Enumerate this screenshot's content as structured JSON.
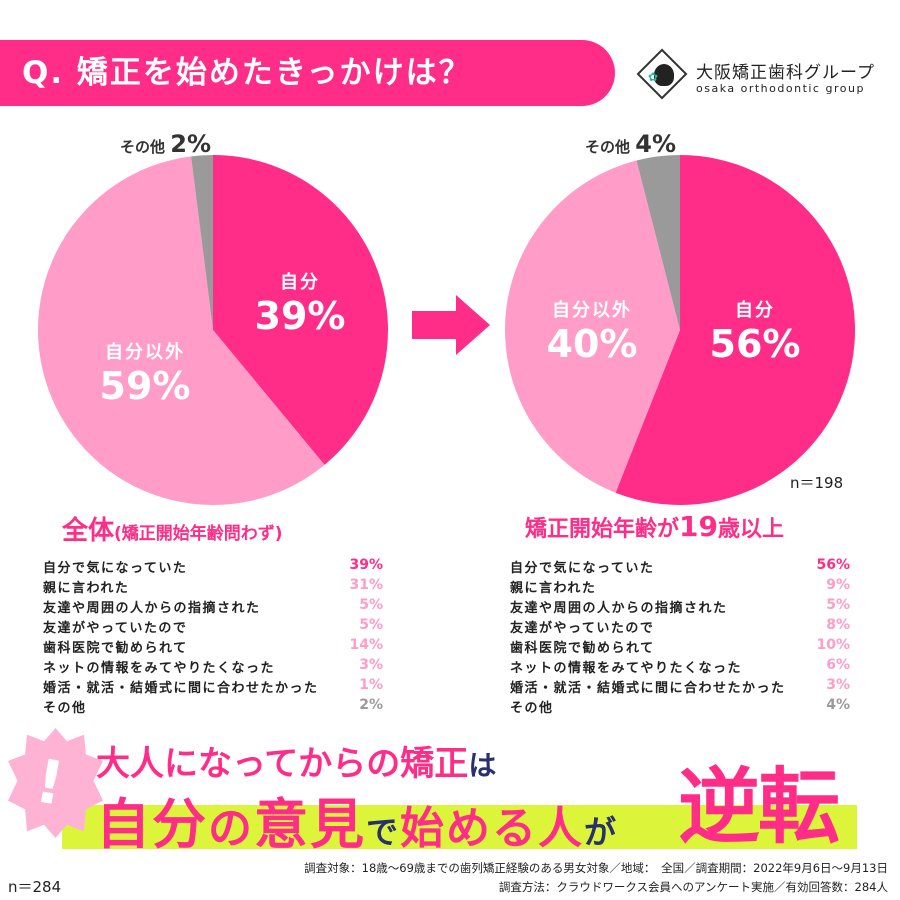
{
  "header": {
    "title": "Q. 矯正を始めたきっかけは？"
  },
  "logo": {
    "jp": "大阪矯正歯科グループ",
    "en": "osaka orthodontic group"
  },
  "colors": {
    "self": "#ff2d87",
    "not_self": "#ff9cc8",
    "other": "#9a9a9a",
    "lime": "#dcf53a",
    "navy": "#2a2f6e"
  },
  "chart_data": [
    {
      "type": "pie",
      "title": "全体",
      "subtitle": "(矯正開始年齢問わず)",
      "slices": [
        {
          "label": "自分",
          "value": 39
        },
        {
          "label": "自分以外",
          "value": 59
        },
        {
          "label": "その他",
          "value": 2
        }
      ],
      "n": "n＝284"
    },
    {
      "type": "pie",
      "title": "矯正開始年齢が19歳以上",
      "slices": [
        {
          "label": "自分",
          "value": 56
        },
        {
          "label": "自分以外",
          "value": 40
        },
        {
          "label": "その他",
          "value": 4
        }
      ],
      "n": "n＝198"
    }
  ],
  "left_table": [
    {
      "label": "自分で気になっていた",
      "value": "39%"
    },
    {
      "label": "親に言われた",
      "value": "31%"
    },
    {
      "label": "友達や周囲の人からの指摘された",
      "value": "5%"
    },
    {
      "label": "友達がやっていたので",
      "value": "5%"
    },
    {
      "label": "歯科医院で勧められて",
      "value": "14%"
    },
    {
      "label": "ネットの情報をみてやりたくなった",
      "value": "3%"
    },
    {
      "label": "婚活・就活・結婚式に間に合わせたかった",
      "value": "1%"
    },
    {
      "label": "その他",
      "value": "2%"
    }
  ],
  "right_table": [
    {
      "label": "自分で気になっていた",
      "value": "56%"
    },
    {
      "label": "親に言われた",
      "value": "9%"
    },
    {
      "label": "友達や周囲の人からの指摘された",
      "value": "5%"
    },
    {
      "label": "友達がやっていたので",
      "value": "8%"
    },
    {
      "label": "歯科医院で勧められて",
      "value": "10%"
    },
    {
      "label": "ネットの情報をみてやりたくなった",
      "value": "6%"
    },
    {
      "label": "婚活・就活・結婚式に間に合わせたかった",
      "value": "3%"
    },
    {
      "label": "その他",
      "value": "4%"
    }
  ],
  "left_sub": {
    "main": "全体",
    "paren": "(矯正開始年齢問わず)"
  },
  "right_sub": {
    "a": "矯正開始年齢が",
    "b": "19",
    "c": "歳以上"
  },
  "message": {
    "line1": "大人になってからの矯正",
    "line1_end": "は",
    "w1": "自分",
    "w2": "の",
    "w3": "意見",
    "w4": "で",
    "w5": "始める人",
    "w6": "が",
    "big": "逆転",
    "excl": "!"
  },
  "footer": {
    "line1": "調査対象：18歳～69歳までの歯列矯正経験のある男女対象／地域：　全国／調査期間：2022年9月6日～9月13日",
    "line2": "調査方法：クラウドワークス会員へのアンケート実施／有効回答数：284人",
    "n": "n＝284"
  },
  "right_n": "n＝198"
}
